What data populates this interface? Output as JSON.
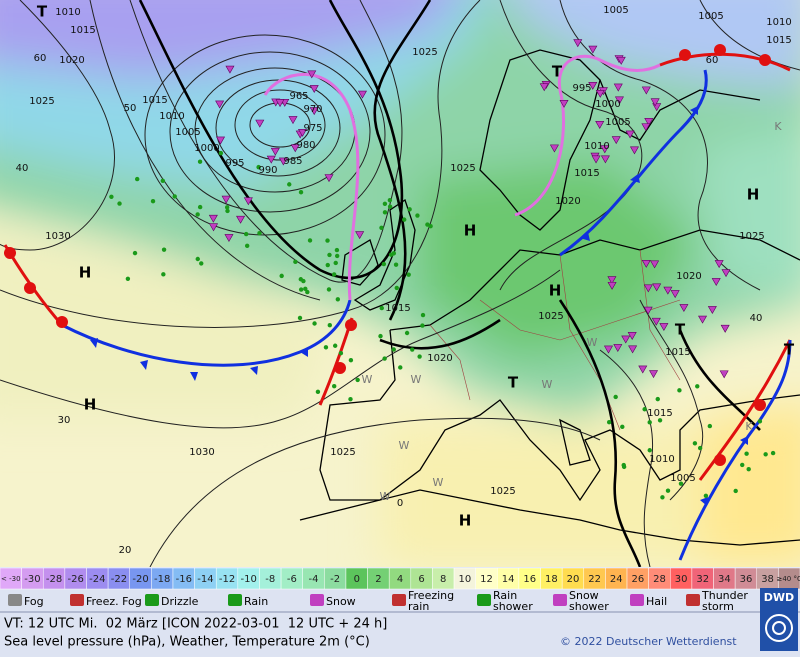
{
  "map": {
    "isobar_labels": [
      1010,
      1015,
      1020,
      1025,
      1015,
      1010,
      1005,
      1000,
      995,
      990,
      985,
      980,
      975,
      970,
      965,
      1030,
      1025,
      1005,
      1005,
      1010,
      1015,
      995,
      1000,
      1005,
      1010,
      1015,
      1020,
      1025,
      1025,
      1015,
      1020,
      1025,
      1020,
      1015,
      1015,
      1010,
      1005,
      1030,
      1025,
      1025
    ],
    "contour_labels": [
      60,
      50,
      40,
      30,
      20,
      60,
      40,
      0
    ],
    "centers": [
      "H",
      "H",
      "H",
      "H",
      "H",
      "H",
      "T",
      "T",
      "T",
      "T",
      "T"
    ],
    "front_letters": [
      "W",
      "W",
      "W",
      "W",
      "W",
      "W",
      "W",
      "K",
      "K"
    ]
  },
  "temperature_scale": {
    "labels": [
      "< -30",
      -30,
      -28,
      -26,
      -24,
      -22,
      -20,
      -18,
      -16,
      -14,
      -12,
      -10,
      -8,
      -6,
      -4,
      -2,
      0,
      2,
      4,
      6,
      8,
      10,
      12,
      14,
      16,
      18,
      20,
      22,
      24,
      26,
      28,
      30,
      32,
      34,
      36,
      38,
      "≥40 °C"
    ],
    "colors": [
      "#e0a8f8",
      "#d49cf0",
      "#c490ee",
      "#b08cee",
      "#9c8cf0",
      "#8a8ef0",
      "#7896f0",
      "#7ca8f2",
      "#84bcf4",
      "#8ed0f4",
      "#98e2f2",
      "#a2f0ec",
      "#a4f0da",
      "#a2eec6",
      "#98e6b2",
      "#8cdca0",
      "#5cc45c",
      "#74d074",
      "#92da80",
      "#aee494",
      "#c8eeaa",
      "#f4f4dc",
      "#ffffc8",
      "#ffffa8",
      "#ffff88",
      "#fff064",
      "#ffdc50",
      "#ffc850",
      "#ffb450",
      "#ffa064",
      "#ff8c78",
      "#ff6060",
      "#f06478",
      "#e07888",
      "#d08c96",
      "#c8a0a0",
      "#b48c8c"
    ]
  },
  "weather_legend": [
    "Fog",
    "Freez. Fog",
    "Drizzle",
    "Rain",
    "Snow",
    "Freezing rain",
    "Rain shower",
    "Snow shower",
    "Hail",
    "Thunder storm"
  ],
  "footer": {
    "valid_time": "VT: 12 UTC Mi.  02 März [ICON 2022-03-01  12 UTC + 24 h]",
    "description": "Sea level pressure (hPa), Weather, Temperature 2m (°C)",
    "copyright": "© 2022 Deutscher Wetterdienst",
    "logo": "DWD"
  }
}
